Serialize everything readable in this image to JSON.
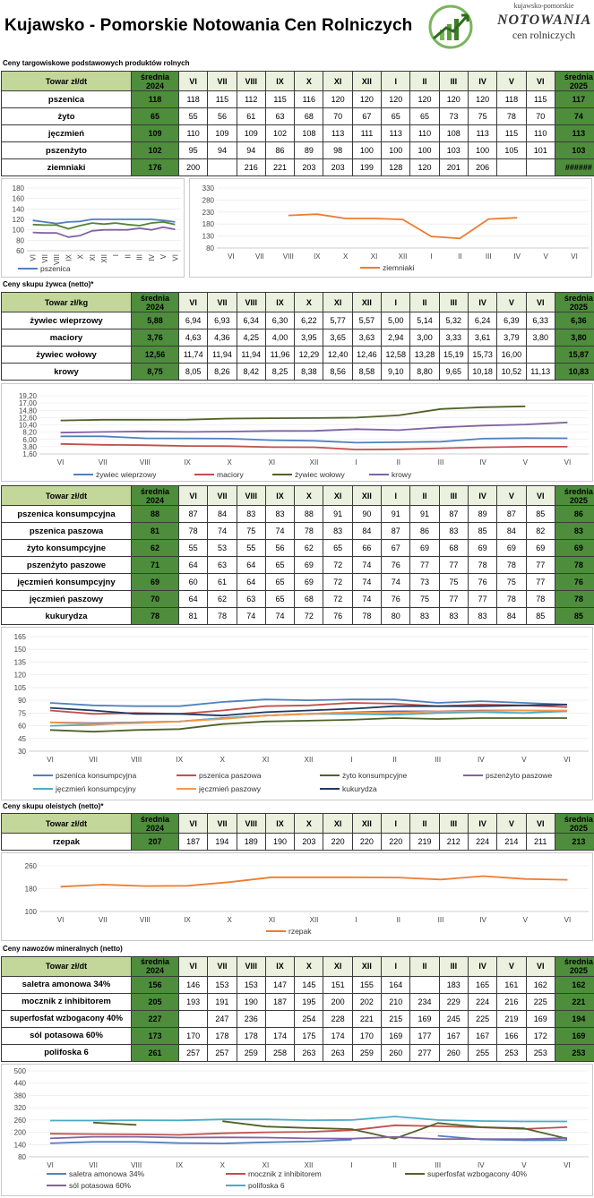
{
  "header": {
    "title": "Kujawsko - Pomorskie Notowania Cen Rolniczych",
    "logo_top": "kujawsko-pomorskie",
    "logo_main": "NOTOWANIA",
    "logo_sub": "cen rolniczych"
  },
  "months": [
    "VI",
    "VII",
    "VIII",
    "IX",
    "X",
    "XI",
    "XII",
    "I",
    "II",
    "III",
    "IV",
    "V",
    "VI"
  ],
  "sections": [
    {
      "id": "s1",
      "title": "Ceny targowiskowe podstawowych produktów rolnych",
      "head_label": "Towar zł/dt",
      "avg_label_1": "średnia 2024",
      "avg_label_2": "średnia 2025",
      "rows": [
        {
          "name": "pszenica",
          "avg2024": "118",
          "vals": [
            "118",
            "115",
            "112",
            "115",
            "116",
            "120",
            "120",
            "120",
            "120",
            "120",
            "120",
            "118",
            "115"
          ],
          "avg2025": "117"
        },
        {
          "name": "żyto",
          "avg2024": "65",
          "vals": [
            "55",
            "56",
            "61",
            "63",
            "68",
            "70",
            "67",
            "65",
            "65",
            "73",
            "75",
            "78",
            "70"
          ],
          "avg2025": "74"
        },
        {
          "name": "jęczmień",
          "avg2024": "109",
          "vals": [
            "110",
            "109",
            "109",
            "102",
            "108",
            "113",
            "111",
            "113",
            "110",
            "108",
            "113",
            "115",
            "110"
          ],
          "avg2025": "113"
        },
        {
          "name": "pszenżyto",
          "avg2024": "102",
          "vals": [
            "95",
            "94",
            "94",
            "86",
            "89",
            "98",
            "100",
            "100",
            "100",
            "103",
            "100",
            "105",
            "101"
          ],
          "avg2025": "103"
        },
        {
          "name": "ziemniaki",
          "avg2024": "176",
          "vals": [
            "200",
            "",
            "216",
            "221",
            "203",
            "203",
            "199",
            "128",
            "120",
            "201",
            "206",
            "",
            ""
          ],
          "avg2025": "######"
        }
      ]
    },
    {
      "id": "s2",
      "title": "Ceny skupu żywca (netto)*",
      "head_label": "Towar zł/kg",
      "avg_label_1": "średnia 2024",
      "avg_label_2": "średnia 2025",
      "rows": [
        {
          "name": "żywiec wieprzowy",
          "avg2024": "5,88",
          "vals": [
            "6,94",
            "6,93",
            "6,34",
            "6,30",
            "6,22",
            "5,77",
            "5,57",
            "5,00",
            "5,14",
            "5,32",
            "6,24",
            "6,39",
            "6,33"
          ],
          "avg2025": "6,36"
        },
        {
          "name": "maciory",
          "avg2024": "3,76",
          "vals": [
            "4,63",
            "4,36",
            "4,25",
            "4,00",
            "3,95",
            "3,65",
            "3,63",
            "2,94",
            "3,00",
            "3,33",
            "3,61",
            "3,79",
            "3,80"
          ],
          "avg2025": "3,80"
        },
        {
          "name": "żywiec wołowy",
          "avg2024": "12,56",
          "vals": [
            "11,74",
            "11,94",
            "11,94",
            "11,96",
            "12,29",
            "12,40",
            "12,46",
            "12,58",
            "13,28",
            "15,19",
            "15,73",
            "16,00",
            ""
          ],
          "avg2025": "15,87"
        },
        {
          "name": "krowy",
          "avg2024": "8,75",
          "vals": [
            "8,05",
            "8,26",
            "8,42",
            "8,25",
            "8,38",
            "8,56",
            "8,58",
            "9,10",
            "8,80",
            "9,65",
            "10,18",
            "10,52",
            "11,13"
          ],
          "avg2025": "10,83"
        }
      ]
    },
    {
      "id": "s3",
      "title": "",
      "head_label": "Towar zł/dt",
      "avg_label_1": "średnia 2024",
      "avg_label_2": "średnia 2025",
      "rows": [
        {
          "name": "pszenica konsumpcyjna",
          "avg2024": "88",
          "vals": [
            "87",
            "84",
            "83",
            "83",
            "88",
            "91",
            "90",
            "91",
            "91",
            "87",
            "89",
            "87",
            "85"
          ],
          "avg2025": "86"
        },
        {
          "name": "pszenica paszowa",
          "avg2024": "81",
          "vals": [
            "78",
            "74",
            "75",
            "74",
            "78",
            "83",
            "84",
            "87",
            "86",
            "83",
            "85",
            "84",
            "82"
          ],
          "avg2025": "83"
        },
        {
          "name": "żyto konsumpcyjne",
          "avg2024": "62",
          "vals": [
            "55",
            "53",
            "55",
            "56",
            "62",
            "65",
            "66",
            "67",
            "69",
            "68",
            "69",
            "69",
            "69"
          ],
          "avg2025": "69"
        },
        {
          "name": "pszenżyto paszowe",
          "avg2024": "71",
          "vals": [
            "64",
            "63",
            "64",
            "65",
            "69",
            "72",
            "74",
            "76",
            "77",
            "77",
            "78",
            "78",
            "77"
          ],
          "avg2025": "78"
        },
        {
          "name": "jęczmień konsumpcyjny",
          "avg2024": "69",
          "vals": [
            "60",
            "61",
            "64",
            "65",
            "69",
            "72",
            "74",
            "74",
            "73",
            "75",
            "76",
            "75",
            "77"
          ],
          "avg2025": "76"
        },
        {
          "name": "jęczmień paszowy",
          "avg2024": "70",
          "vals": [
            "64",
            "62",
            "63",
            "65",
            "68",
            "72",
            "74",
            "76",
            "75",
            "77",
            "77",
            "78",
            "78"
          ],
          "avg2025": "78"
        },
        {
          "name": "kukurydza",
          "avg2024": "78",
          "vals": [
            "81",
            "78",
            "74",
            "74",
            "72",
            "76",
            "78",
            "80",
            "83",
            "83",
            "83",
            "84",
            "85"
          ],
          "avg2025": "85"
        }
      ]
    },
    {
      "id": "s4",
      "title": "Ceny skupu oleistych (netto)*",
      "head_label": "Towar zł/dt",
      "avg_label_1": "średnia 2024",
      "avg_label_2": "średnia 2025",
      "rows": [
        {
          "name": "rzepak",
          "avg2024": "207",
          "vals": [
            "187",
            "194",
            "189",
            "190",
            "203",
            "220",
            "220",
            "220",
            "219",
            "212",
            "224",
            "214",
            "211"
          ],
          "avg2025": "213"
        }
      ]
    },
    {
      "id": "s5",
      "title": "Ceny nawozów mineralnych (netto)",
      "head_label": "Towar zł/dt",
      "avg_label_1": "średnia 2024",
      "avg_label_2": "średnia 2025",
      "rows": [
        {
          "name": "saletra amonowa 34%",
          "avg2024": "156",
          "vals": [
            "146",
            "153",
            "153",
            "147",
            "145",
            "151",
            "155",
            "164",
            "",
            "183",
            "165",
            "161",
            "162"
          ],
          "avg2025": "162"
        },
        {
          "name": "mocznik z inhibitorem",
          "avg2024": "205",
          "vals": [
            "193",
            "191",
            "190",
            "187",
            "195",
            "200",
            "202",
            "210",
            "234",
            "229",
            "224",
            "216",
            "225"
          ],
          "avg2025": "221"
        },
        {
          "name": "superfosfat wzbogacony 40%",
          "avg2024": "227",
          "vals": [
            "",
            "247",
            "236",
            "",
            "254",
            "228",
            "221",
            "215",
            "169",
            "245",
            "225",
            "219",
            "169"
          ],
          "avg2025": "194"
        },
        {
          "name": "sól potasowa 60%",
          "avg2024": "173",
          "vals": [
            "170",
            "178",
            "178",
            "174",
            "175",
            "174",
            "170",
            "169",
            "177",
            "167",
            "167",
            "166",
            "172"
          ],
          "avg2025": "169"
        },
        {
          "name": "polifoska 6",
          "avg2024": "261",
          "vals": [
            "257",
            "257",
            "259",
            "258",
            "263",
            "263",
            "259",
            "260",
            "277",
            "260",
            "255",
            "253",
            "253"
          ],
          "avg2025": "253"
        }
      ]
    }
  ],
  "chart_data": [
    {
      "type": "line",
      "x": [
        "VI",
        "VII",
        "VIII",
        "IX",
        "X",
        "XI",
        "XII",
        "I",
        "II",
        "III",
        "IV",
        "V",
        "VI"
      ],
      "ylim": [
        60,
        180
      ],
      "yticks": [
        "180",
        "160",
        "140",
        "120",
        "100",
        "80",
        "60"
      ],
      "series": [
        {
          "name": "pszenica",
          "color": "#4f81bd",
          "values": [
            118,
            115,
            112,
            115,
            116,
            120,
            120,
            120,
            120,
            120,
            120,
            118,
            115
          ]
        },
        {
          "color": "#548235",
          "values": [
            110,
            109,
            109,
            102,
            108,
            113,
            111,
            113,
            110,
            108,
            113,
            115,
            110
          ]
        },
        {
          "color": "#8064a2",
          "values": [
            95,
            94,
            94,
            86,
            89,
            98,
            100,
            100,
            100,
            103,
            100,
            105,
            101
          ]
        }
      ]
    },
    {
      "type": "line",
      "x": [
        "VI",
        "VII",
        "VIII",
        "IX",
        "X",
        "XI",
        "XII",
        "I",
        "II",
        "III",
        "IV",
        "V",
        "VI"
      ],
      "ylim": [
        80,
        330
      ],
      "yticks": [
        "330",
        "280",
        "230",
        "180",
        "130",
        "80"
      ],
      "series": [
        {
          "name": "ziemniaki",
          "color": "#ed7d31",
          "values": [
            null,
            null,
            216,
            221,
            203,
            203,
            199,
            128,
            120,
            201,
            206,
            null,
            null
          ]
        }
      ]
    },
    {
      "type": "line",
      "x": [
        "VI",
        "VII",
        "VIII",
        "IX",
        "X",
        "XI",
        "XII",
        "I",
        "II",
        "III",
        "IV",
        "V",
        "VI"
      ],
      "ylim": [
        1.6,
        19.2
      ],
      "yticks": [
        "19,20",
        "17,00",
        "14,80",
        "12,60",
        "10,40",
        "8,20",
        "6,00",
        "3,80",
        "1,60"
      ],
      "series": [
        {
          "name": "żywiec wieprzowy",
          "color": "#4f81bd",
          "values": [
            6.94,
            6.93,
            6.34,
            6.3,
            6.22,
            5.77,
            5.57,
            5.0,
            5.14,
            5.32,
            6.24,
            6.39,
            6.33
          ]
        },
        {
          "name": "maciory",
          "color": "#c0504d",
          "values": [
            4.63,
            4.36,
            4.25,
            4.0,
            3.95,
            3.65,
            3.63,
            2.94,
            3.0,
            3.33,
            3.61,
            3.79,
            3.8
          ]
        },
        {
          "name": "żywiec wołowy",
          "color": "#4f6228",
          "values": [
            11.74,
            11.94,
            11.94,
            11.96,
            12.29,
            12.4,
            12.46,
            12.58,
            13.28,
            15.19,
            15.73,
            16.0,
            null
          ]
        },
        {
          "name": "krowy",
          "color": "#8064a2",
          "values": [
            8.05,
            8.26,
            8.42,
            8.25,
            8.38,
            8.56,
            8.58,
            9.1,
            8.8,
            9.65,
            10.18,
            10.52,
            11.13
          ]
        }
      ]
    },
    {
      "type": "line",
      "x": [
        "VI",
        "VII",
        "VIII",
        "IX",
        "X",
        "XI",
        "XII",
        "I",
        "II",
        "III",
        "IV",
        "V",
        "VI"
      ],
      "ylim": [
        30,
        165
      ],
      "yticks": [
        "165",
        "150",
        "135",
        "120",
        "105",
        "90",
        "75",
        "60",
        "45",
        "30"
      ],
      "series": [
        {
          "name": "pszenica konsumpcyjna",
          "color": "#4f81bd",
          "values": [
            87,
            84,
            83,
            83,
            88,
            91,
            90,
            91,
            91,
            87,
            89,
            87,
            85
          ]
        },
        {
          "name": "pszenica paszowa",
          "color": "#c0504d",
          "values": [
            78,
            74,
            75,
            74,
            78,
            83,
            84,
            87,
            86,
            83,
            85,
            84,
            82
          ]
        },
        {
          "name": "żyto konsumpcyjne",
          "color": "#4f6228",
          "values": [
            55,
            53,
            55,
            56,
            62,
            65,
            66,
            67,
            69,
            68,
            69,
            69,
            69
          ]
        },
        {
          "name": "pszenżyto paszowe",
          "color": "#8064a2",
          "values": [
            64,
            63,
            64,
            65,
            69,
            72,
            74,
            76,
            77,
            77,
            78,
            78,
            77
          ]
        },
        {
          "name": "jęczmień konsumpcyjny",
          "color": "#4bacc6",
          "values": [
            60,
            61,
            64,
            65,
            69,
            72,
            74,
            74,
            73,
            75,
            76,
            75,
            77
          ]
        },
        {
          "name": "jęczmień paszowy",
          "color": "#f79646",
          "values": [
            64,
            62,
            63,
            65,
            68,
            72,
            74,
            76,
            75,
            77,
            77,
            78,
            78
          ]
        },
        {
          "name": "kukurydza",
          "color": "#1f3864",
          "values": [
            81,
            78,
            74,
            74,
            72,
            76,
            78,
            80,
            83,
            83,
            83,
            84,
            85
          ]
        }
      ]
    },
    {
      "type": "line",
      "x": [
        "VI",
        "VII",
        "VIII",
        "IX",
        "X",
        "XI",
        "XII",
        "I",
        "II",
        "III",
        "IV",
        "V",
        "VI"
      ],
      "ylim": [
        100,
        260
      ],
      "yticks": [
        "260",
        "180",
        "100"
      ],
      "series": [
        {
          "name": "rzepak",
          "color": "#ed7d31",
          "values": [
            187,
            194,
            189,
            190,
            203,
            220,
            220,
            220,
            219,
            212,
            224,
            214,
            211
          ]
        }
      ]
    },
    {
      "type": "line",
      "x": [
        "VI",
        "VII",
        "VIII",
        "IX",
        "X",
        "XI",
        "XII",
        "I",
        "II",
        "III",
        "IV",
        "V",
        "VI"
      ],
      "ylim": [
        80,
        500
      ],
      "yticks": [
        "500",
        "440",
        "380",
        "320",
        "260",
        "200",
        "140",
        "80"
      ],
      "series": [
        {
          "name": "saletra amonowa 34%",
          "color": "#4f81bd",
          "values": [
            146,
            153,
            153,
            147,
            145,
            151,
            155,
            164,
            null,
            183,
            165,
            161,
            162
          ]
        },
        {
          "name": "mocznik z inhibitorem",
          "color": "#c0504d",
          "values": [
            193,
            191,
            190,
            187,
            195,
            200,
            202,
            210,
            234,
            229,
            224,
            216,
            225
          ]
        },
        {
          "name": "superfosfat wzbogacony 40%",
          "color": "#4f6228",
          "values": [
            null,
            247,
            236,
            null,
            254,
            228,
            221,
            215,
            169,
            245,
            225,
            219,
            169
          ]
        },
        {
          "name": "sól potasowa 60%",
          "color": "#8064a2",
          "values": [
            170,
            178,
            178,
            174,
            175,
            174,
            170,
            169,
            177,
            167,
            167,
            166,
            172
          ]
        },
        {
          "name": "polifoska 6",
          "color": "#4bacc6",
          "values": [
            257,
            257,
            259,
            258,
            263,
            263,
            259,
            260,
            277,
            260,
            255,
            253,
            253
          ]
        }
      ]
    }
  ]
}
